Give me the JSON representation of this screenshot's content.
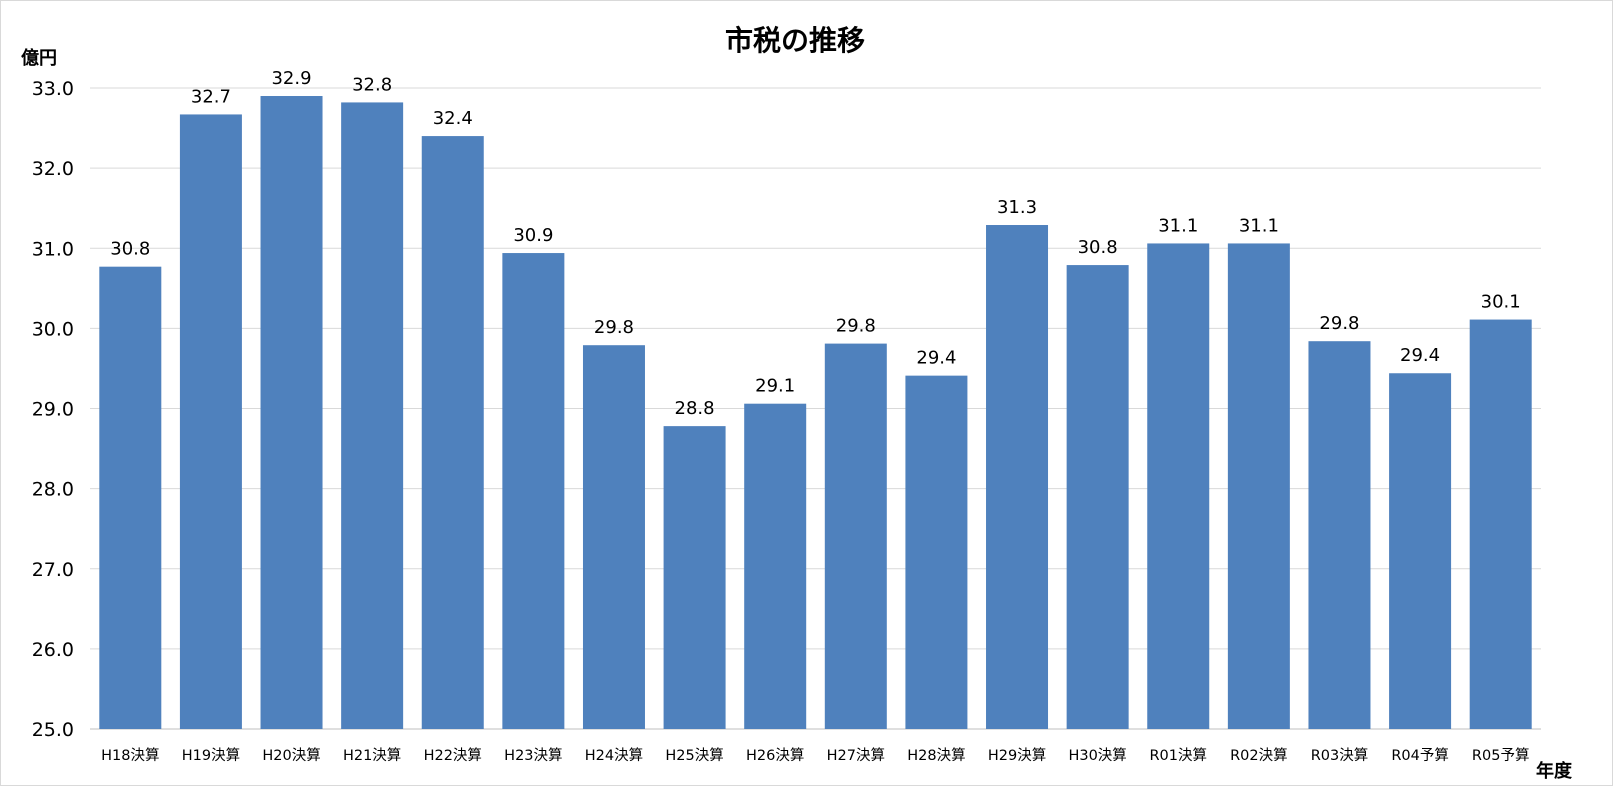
{
  "chart_data": {
    "type": "bar",
    "title": "市税の推移",
    "ylabel": "億円",
    "xlabel": "年度",
    "ylim": [
      25.0,
      33.0
    ],
    "yticks": [
      "25.0",
      "26.0",
      "27.0",
      "28.0",
      "29.0",
      "30.0",
      "31.0",
      "32.0",
      "33.0"
    ],
    "grid": true,
    "legend": "none",
    "bar_color": "#4f81bd",
    "categories": [
      "H18決算",
      "H19決算",
      "H20決算",
      "H21決算",
      "H22決算",
      "H23決算",
      "H24決算",
      "H25決算",
      "H26決算",
      "H27決算",
      "H28決算",
      "H29決算",
      "H30決算",
      "R01決算",
      "R02決算",
      "R03決算",
      "R04予算",
      "R05予算"
    ],
    "values": [
      30.77,
      32.67,
      32.9,
      32.82,
      32.4,
      30.94,
      29.79,
      28.78,
      29.06,
      29.81,
      29.41,
      31.29,
      30.79,
      31.06,
      31.06,
      29.84,
      29.44,
      30.11
    ],
    "value_labels": [
      "30.8",
      "32.7",
      "32.9",
      "32.8",
      "32.4",
      "30.9",
      "29.8",
      "28.8",
      "29.1",
      "29.8",
      "29.4",
      "31.3",
      "30.8",
      "31.1",
      "31.1",
      "29.8",
      "29.4",
      "30.1"
    ]
  }
}
